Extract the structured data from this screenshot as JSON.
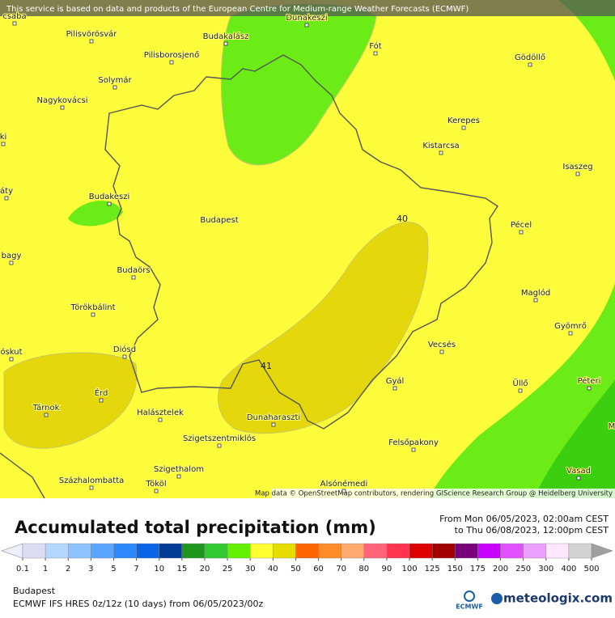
{
  "attribution_top": "This service is based on data and products of the European Centre for Medium-range Weather Forecasts (ECMWF)",
  "map_attribution": "Map data © OpenStreetMap contributors, rendering GIScience Research Group @ Heidelberg University",
  "city_label": "Budapest",
  "places": [
    "csaba",
    "Dunakeszi",
    "Pilisvörösvár",
    "Budakalász",
    "Fót",
    "Gödöllő",
    "Pilisborosjenő",
    "Solymár",
    "Nagykovácsi",
    "ki",
    "Kerepes",
    "Kistarcsa",
    "Isaszeg",
    "áty",
    "Budakeszi",
    "Pécel",
    "bagy",
    "Budaörs",
    "Maglód",
    "Törökbálint",
    "Gyömrő",
    "Vecsés",
    "óskut",
    "Diósd",
    "Gyál",
    "Üllő",
    "Péteri",
    "Érd",
    "Tárnok",
    "Halásztelek",
    "Dunaharaszti",
    "M",
    "Szigetszentmiklós",
    "Felsőpakony",
    "Szigethalom",
    "Vasad",
    "Százhalombatta",
    "Tököl",
    "Alsónémedi"
  ],
  "contour_labels": [
    40,
    41
  ],
  "legend": {
    "title": "Accumulated total precipitation (mm)",
    "ticks": [
      0.1,
      1,
      2,
      3,
      5,
      7,
      10,
      15,
      20,
      25,
      30,
      40,
      50,
      60,
      70,
      80,
      90,
      100,
      125,
      150,
      175,
      200,
      250,
      300,
      400,
      500
    ],
    "colors": [
      "#dcdcf5",
      "#b4d7ff",
      "#8cc3ff",
      "#5aa5ff",
      "#2d87ff",
      "#0a64e6",
      "#003c96",
      "#1e961e",
      "#32c832",
      "#64f000",
      "#ffff32",
      "#e6dc00",
      "#ff6400",
      "#ff8c28",
      "#ffaa6e",
      "#ff6478",
      "#ff3250",
      "#dc0000",
      "#a00000",
      "#780078",
      "#c800ff",
      "#e150ff",
      "#eba0ff",
      "#ffe6ff",
      "#d2d2d2"
    ],
    "under_color": "#eeeefa",
    "over_color": "#a0a0a0"
  },
  "period": {
    "from": "From Mon 06/05/2023, 02:00am CEST",
    "to": "to Thu 06/08/2023, 12:00pm CEST"
  },
  "footer": {
    "location": "Budapest",
    "model": "ECMWF IFS HRES 0z/12z (10 days) from  06/05/2023/00z"
  },
  "logos": {
    "ecmwf": "ECMWF",
    "meteologix": "meteologix.com"
  }
}
